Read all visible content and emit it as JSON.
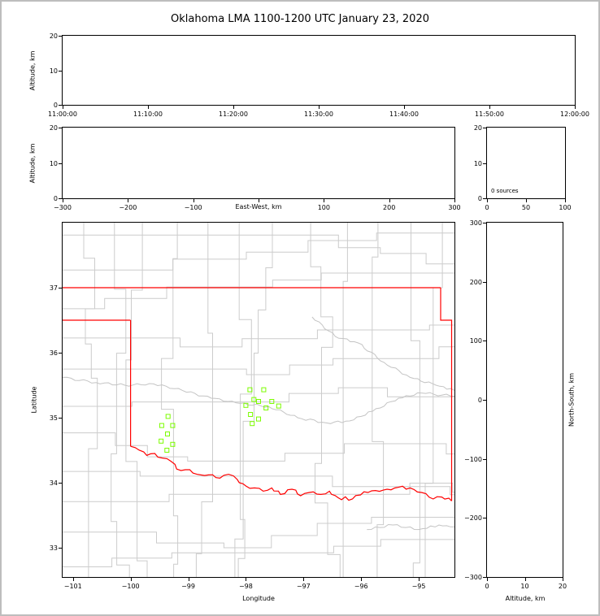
{
  "title": "Oklahoma LMA 1100-1200 UTC January 23, 2020",
  "colors": {
    "state_border": "#ff0000",
    "county_lines": "#cccccc",
    "river_lines": "#c4c4c4",
    "station_marker": "#7cfc00",
    "axis": "#000000"
  },
  "chart_data": [
    {
      "id": "time_height_panel",
      "type": "scatter",
      "xlabel": "",
      "ylabel": "Altitude, km",
      "xlim": [
        0,
        3600
      ],
      "ylim": [
        0,
        20
      ],
      "x_ticks": [
        0,
        600,
        1200,
        1800,
        2400,
        3000,
        3600
      ],
      "x_tick_labels": [
        "11:00:00",
        "11:10:00",
        "11:20:00",
        "11:30:00",
        "11:40:00",
        "11:50:00",
        "12:00:00"
      ],
      "y_ticks": [
        0,
        10,
        20
      ],
      "y_tick_labels": [
        "0",
        "10",
        "20"
      ],
      "points": []
    },
    {
      "id": "east_west_height_panel",
      "type": "scatter",
      "xlabel": "East-West, km",
      "ylabel": "Altitude, km",
      "xlim": [
        -300,
        300
      ],
      "ylim": [
        0,
        20
      ],
      "x_ticks": [
        -300,
        -200,
        -100,
        0,
        100,
        200,
        300
      ],
      "x_tick_labels": [
        "−300",
        "−200",
        "−100",
        "",
        "100",
        "200",
        "300"
      ],
      "y_ticks": [
        0,
        10,
        20
      ],
      "y_tick_labels": [
        "0",
        "10",
        "20"
      ],
      "points": []
    },
    {
      "id": "altitude_histogram_panel",
      "type": "line",
      "annotation": "0 sources",
      "xlabel": "",
      "ylabel": "",
      "xlim": [
        0,
        100
      ],
      "ylim": [
        0,
        20
      ],
      "x_ticks": [
        0,
        50,
        100
      ],
      "x_tick_labels": [
        "0",
        "50",
        "100"
      ],
      "y_ticks": [
        0,
        10,
        20
      ],
      "y_tick_labels": [
        "0",
        "10",
        "20"
      ],
      "points": []
    },
    {
      "id": "plan_view_map_panel",
      "type": "scatter",
      "xlabel": "Longitude",
      "ylabel": "Latitude",
      "xlim": [
        -101.18,
        -94.38
      ],
      "ylim": [
        32.55,
        38.0
      ],
      "x_ticks": [
        -101,
        -100,
        -99,
        -98,
        -97,
        -96,
        -95
      ],
      "x_tick_labels": [
        "−101",
        "−100",
        "−99",
        "−98",
        "−97",
        "−96",
        "−95"
      ],
      "y_ticks": [
        33,
        34,
        35,
        36,
        37
      ],
      "y_tick_labels": [
        "33",
        "34",
        "35",
        "36",
        "37"
      ],
      "stations": [
        [
          -97.93,
          35.43
        ],
        [
          -97.69,
          35.43
        ],
        [
          -97.86,
          35.28
        ],
        [
          -98.0,
          35.19
        ],
        [
          -97.78,
          35.25
        ],
        [
          -97.92,
          35.05
        ],
        [
          -97.65,
          35.15
        ],
        [
          -97.55,
          35.25
        ],
        [
          -97.43,
          35.18
        ],
        [
          -97.78,
          34.98
        ],
        [
          -97.89,
          34.91
        ],
        [
          -99.35,
          35.02
        ],
        [
          -99.46,
          34.88
        ],
        [
          -99.27,
          34.88
        ],
        [
          -99.36,
          34.75
        ],
        [
          -99.47,
          34.64
        ],
        [
          -99.27,
          34.59
        ],
        [
          -99.37,
          34.5
        ]
      ],
      "state_border": {
        "north": [
          [
            -101.18,
            37.0
          ],
          [
            -94.62,
            37.0
          ]
        ],
        "east": [
          [
            -94.62,
            37.0
          ],
          [
            -94.62,
            36.5
          ],
          [
            -94.43,
            36.5
          ],
          [
            -94.43,
            33.72
          ]
        ],
        "panhandle_south": [
          [
            -101.18,
            36.5
          ],
          [
            -100.0,
            36.5
          ]
        ],
        "west": [
          [
            -100.0,
            36.5
          ],
          [
            -100.0,
            34.56
          ]
        ],
        "red_river": [
          [
            -100.0,
            34.56
          ],
          [
            -99.85,
            34.5
          ],
          [
            -99.72,
            34.42
          ],
          [
            -99.58,
            34.45
          ],
          [
            -99.45,
            34.38
          ],
          [
            -99.3,
            34.33
          ],
          [
            -99.2,
            34.21
          ],
          [
            -99.05,
            34.2
          ],
          [
            -98.85,
            34.13
          ],
          [
            -98.65,
            34.12
          ],
          [
            -98.45,
            34.07
          ],
          [
            -98.3,
            34.13
          ],
          [
            -98.15,
            34.05
          ],
          [
            -98.0,
            33.95
          ],
          [
            -97.85,
            33.92
          ],
          [
            -97.7,
            33.87
          ],
          [
            -97.55,
            33.92
          ],
          [
            -97.4,
            33.82
          ],
          [
            -97.2,
            33.9
          ],
          [
            -97.05,
            33.8
          ],
          [
            -96.9,
            33.85
          ],
          [
            -96.7,
            33.82
          ],
          [
            -96.55,
            33.87
          ],
          [
            -96.4,
            33.77
          ],
          [
            -96.15,
            33.75
          ],
          [
            -95.95,
            33.86
          ],
          [
            -95.75,
            33.88
          ],
          [
            -95.55,
            33.9
          ],
          [
            -95.35,
            33.93
          ],
          [
            -95.15,
            33.92
          ],
          [
            -94.95,
            33.85
          ],
          [
            -94.75,
            33.75
          ],
          [
            -94.6,
            33.78
          ],
          [
            -94.43,
            33.72
          ]
        ]
      },
      "rivers": [
        [
          [
            -101.18,
            35.62
          ],
          [
            -100.6,
            35.54
          ],
          [
            -100.1,
            35.5
          ],
          [
            -99.6,
            35.52
          ],
          [
            -99.1,
            35.42
          ],
          [
            -98.6,
            35.3
          ],
          [
            -98.1,
            35.22
          ],
          [
            -97.6,
            35.17
          ],
          [
            -97.1,
            35.0
          ],
          [
            -96.6,
            34.92
          ],
          [
            -96.2,
            34.95
          ],
          [
            -95.8,
            35.1
          ],
          [
            -95.35,
            35.3
          ],
          [
            -94.95,
            35.38
          ],
          [
            -94.38,
            35.33
          ]
        ],
        [
          [
            -96.85,
            36.55
          ],
          [
            -96.45,
            36.25
          ],
          [
            -96.05,
            36.15
          ],
          [
            -95.6,
            35.85
          ],
          [
            -95.15,
            35.62
          ],
          [
            -94.7,
            35.5
          ],
          [
            -94.38,
            35.42
          ]
        ],
        [
          [
            -95.9,
            33.28
          ],
          [
            -95.45,
            33.35
          ],
          [
            -95.0,
            33.28
          ],
          [
            -94.65,
            33.35
          ],
          [
            -94.38,
            33.32
          ]
        ]
      ]
    },
    {
      "id": "north_south_height_panel",
      "type": "scatter",
      "xlabel": "Altitude, km",
      "ylabel": "North-South, km",
      "xlim": [
        0,
        20
      ],
      "ylim": [
        -300,
        300
      ],
      "x_ticks": [
        0,
        10,
        20
      ],
      "x_tick_labels": [
        "0",
        "10",
        "20"
      ],
      "y_ticks": [
        -300,
        -200,
        -100,
        0,
        100,
        200,
        300
      ],
      "y_tick_labels": [
        "−300",
        "−200",
        "−100",
        "0",
        "100",
        "200",
        "300"
      ],
      "points": []
    }
  ]
}
